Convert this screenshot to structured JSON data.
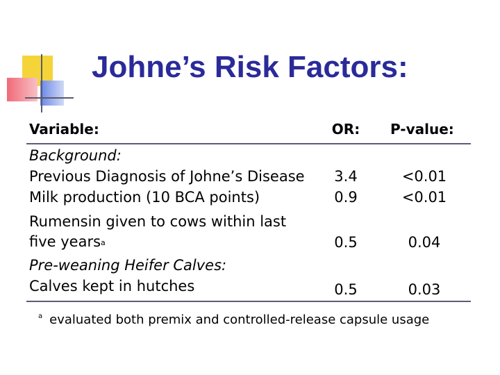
{
  "title": "Johne’s Risk Factors:",
  "table": {
    "headers": {
      "variable": "Variable:",
      "or": "OR:",
      "pvalue": "P-value:"
    },
    "sections": [
      {
        "label": "Background:"
      },
      {
        "label": "Pre-weaning Heifer Calves:"
      }
    ],
    "rows": [
      {
        "variable": "Previous Diagnosis of Johne’s Disease",
        "or": "3.4",
        "pvalue": "<0.01"
      },
      {
        "variable": "Milk production (10 BCA points)",
        "or": "0.9",
        "pvalue": "<0.01"
      },
      {
        "variable_line1": "Rumensin given to cows within last",
        "variable_line2": "five years",
        "marker": "a",
        "or": "0.5",
        "pvalue": "0.04"
      },
      {
        "variable": "Calves kept in hutches",
        "or": "0.5",
        "pvalue": "0.03"
      }
    ]
  },
  "footnote": {
    "marker": "a",
    "text": "evaluated both premix and controlled-release capsule usage"
  },
  "colors": {
    "title": "#2a2a9a",
    "accent_yellow": "#f5d43a",
    "accent_red": "#f06a78",
    "accent_blue": "#3a5ad8"
  }
}
